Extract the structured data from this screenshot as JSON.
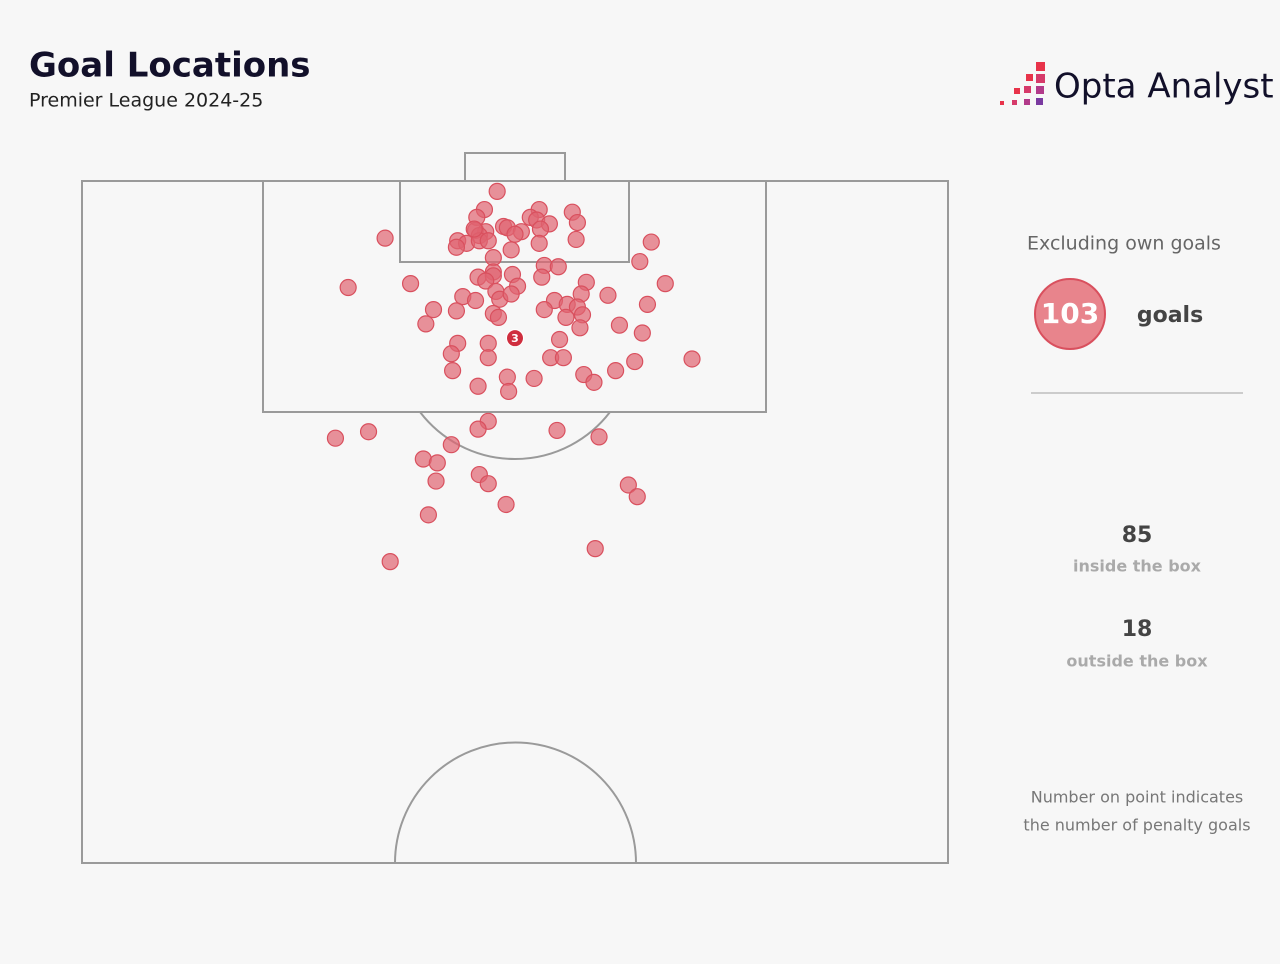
{
  "chart_data": {
    "type": "scatter",
    "title": "Goal Locations",
    "subtitle": "Premier League 2024-25",
    "brand": "Opta Analyst",
    "xlim": [
      0,
      68
    ],
    "ylim": [
      0,
      52.5
    ],
    "color": "#e06470",
    "x": [
      32.6,
      31.6,
      31.0,
      35.9,
      38.5,
      38.9,
      35.2,
      35.7,
      36.7,
      33.1,
      33.4,
      30.9,
      31.7,
      31.2,
      34.5,
      34.0,
      36.0,
      23.8,
      29.5,
      30.2,
      31.2,
      31.9,
      29.4,
      33.7,
      35.9,
      38.8,
      44.7,
      32.3,
      43.8,
      36.3,
      37.4,
      32.3,
      31.1,
      32.3,
      31.7,
      33.8,
      36.1,
      39.6,
      45.8,
      20.9,
      25.8,
      34.2,
      32.5,
      39.2,
      41.3,
      29.9,
      30.9,
      32.8,
      33.7,
      37.1,
      38.1,
      27.6,
      29.4,
      36.3,
      38.9,
      44.4,
      32.3,
      32.7,
      38.0,
      39.3,
      27.0,
      42.2,
      39.1,
      44.0,
      34.0,
      29.5,
      31.9,
      37.5,
      29.0,
      31.9,
      36.8,
      37.8,
      47.9,
      43.4,
      29.1,
      41.9,
      33.4,
      35.5,
      39.4,
      40.2,
      31.1,
      33.5,
      31.9,
      31.1,
      37.3,
      40.6,
      19.9,
      22.5,
      29.0,
      26.8,
      27.9,
      31.2,
      31.9,
      27.8,
      42.9,
      43.6,
      33.3,
      27.2,
      40.3,
      24.2,
      30.8
    ],
    "y": [
      0.8,
      2.2,
      2.8,
      2.2,
      2.4,
      3.2,
      2.8,
      3.0,
      3.3,
      3.5,
      3.6,
      3.8,
      3.9,
      4.2,
      3.9,
      4.1,
      3.7,
      4.4,
      4.6,
      4.8,
      4.6,
      4.6,
      5.1,
      5.3,
      4.8,
      4.5,
      4.7,
      5.9,
      6.2,
      6.5,
      6.6,
      7.0,
      7.4,
      7.3,
      7.7,
      7.2,
      7.4,
      7.8,
      7.9,
      8.2,
      7.9,
      8.1,
      8.5,
      8.7,
      8.8,
      8.9,
      9.2,
      9.1,
      8.7,
      9.2,
      9.5,
      9.9,
      10.0,
      9.9,
      9.7,
      9.5,
      10.2,
      10.5,
      10.5,
      10.3,
      11.0,
      11.1,
      11.3,
      11.7,
      12.1,
      12.5,
      12.5,
      12.2,
      13.3,
      13.6,
      13.6,
      13.6,
      13.7,
      13.9,
      14.6,
      14.6,
      15.1,
      15.2,
      14.9,
      15.5,
      15.8,
      16.2,
      18.5,
      19.1,
      19.2,
      19.7,
      19.8,
      19.3,
      20.3,
      21.4,
      21.7,
      22.6,
      23.3,
      23.1,
      23.4,
      24.3,
      24.9,
      25.7,
      28.3,
      29.3,
      3.7
    ],
    "penalty_goals": [
      null,
      null,
      null,
      null,
      null,
      null,
      null,
      null,
      null,
      null,
      null,
      null,
      null,
      null,
      null,
      null,
      null,
      null,
      null,
      null,
      null,
      null,
      null,
      null,
      null,
      null,
      null,
      null,
      null,
      null,
      null,
      null,
      null,
      null,
      null,
      null,
      null,
      null,
      null,
      null,
      null,
      null,
      null,
      null,
      null,
      null,
      null,
      null,
      null,
      null,
      null,
      null,
      null,
      null,
      null,
      null,
      null,
      null,
      null,
      null,
      null,
      null,
      null,
      null,
      3,
      null,
      null,
      null,
      null,
      null,
      null,
      null,
      null,
      null,
      null,
      null,
      null,
      null,
      null,
      null,
      null,
      null,
      null,
      null,
      null,
      null,
      null,
      null,
      null,
      null,
      null,
      null,
      null,
      null,
      null,
      null,
      null,
      null,
      null,
      null,
      null
    ],
    "stats": {
      "note_top": "Excluding own goals",
      "total": 103,
      "total_label": "goals",
      "inside": 85,
      "inside_label": "inside the box",
      "outside": 18,
      "outside_label": "outside the box",
      "footnote": [
        "Number on point indicates",
        "the number of penalty goals"
      ]
    }
  }
}
